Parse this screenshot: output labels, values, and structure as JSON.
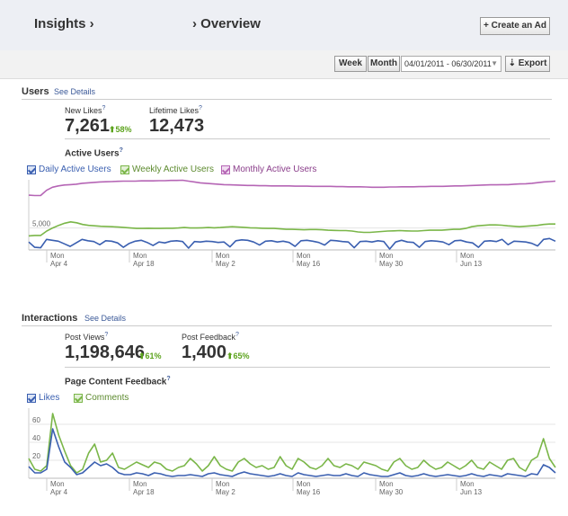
{
  "header": {
    "crumb1": "Insights ›",
    "crumb2": "› Overview",
    "create_ad": "+ Create an Ad"
  },
  "toolbar": {
    "week": "Week",
    "month": "Month",
    "date_range": "04/01/2011 - 06/30/2011",
    "export": "⇣ Export"
  },
  "users": {
    "title": "Users",
    "see_details": "See Details",
    "new_likes_label": "New Likes",
    "new_likes_value": "7,261",
    "new_likes_delta": "58%",
    "lifetime_likes_label": "Lifetime Likes",
    "lifetime_likes_value": "12,473",
    "chart_title": "Active Users",
    "legend": [
      "Daily Active Users",
      "Weekly Active Users",
      "Monthly Active Users"
    ]
  },
  "interactions": {
    "title": "Interactions",
    "see_details": "See Details",
    "post_views_label": "Post Views",
    "post_views_value": "1,198,646",
    "post_views_delta": "61%",
    "post_feedback_label": "Post Feedback",
    "post_feedback_value": "1,400",
    "post_feedback_delta": "65%",
    "chart_title": "Page Content Feedback",
    "legend": [
      "Likes",
      "Comments"
    ]
  },
  "colors": {
    "daily": "#3a5fb0",
    "weekly": "#7ab648",
    "monthly": "#b565b5",
    "link": "#3b5998",
    "up": "#5ca31d"
  },
  "chart_data": [
    {
      "type": "line",
      "title": "Active Users",
      "x_ticks": [
        [
          "Mon",
          "Apr 4"
        ],
        [
          "Mon",
          "Apr 18"
        ],
        [
          "Mon",
          "May 2"
        ],
        [
          "Mon",
          "May 16"
        ],
        [
          "Mon",
          "May 30"
        ],
        [
          "Mon",
          "Jun 13"
        ]
      ],
      "y_ticks": [
        5000
      ],
      "y_tick_labels": [
        "5,000"
      ],
      "ylim": [
        0,
        16000
      ],
      "series": [
        {
          "name": "Daily Active Users",
          "color": "#3a5fb0",
          "values": [
            1800,
            600,
            500,
            2400,
            2200,
            2000,
            1400,
            800,
            1600,
            2400,
            2100,
            1900,
            1200,
            2100,
            2000,
            1600,
            600,
            1500,
            2000,
            2200,
            1700,
            1000,
            1800,
            1600,
            2000,
            2100,
            1900,
            400,
            1900,
            1800,
            2000,
            1900,
            1700,
            1800,
            700,
            2100,
            2300,
            2200,
            1800,
            1100,
            2000,
            2100,
            1800,
            2000,
            1700,
            800,
            2100,
            2200,
            2000,
            1700,
            1100,
            2200,
            2100,
            1900,
            1800,
            500,
            1900,
            2000,
            1800,
            2100,
            1900,
            200,
            1800,
            2200,
            1800,
            1700,
            600,
            1900,
            2100,
            2000,
            1800,
            1200,
            2100,
            2200,
            1800,
            1600,
            600,
            2000,
            2100,
            1900,
            2400,
            1200,
            2000,
            1900,
            1800,
            1500,
            900,
            2400,
            2600,
            2000
          ]
        },
        {
          "name": "Weekly Active Users",
          "color": "#7ab648",
          "values": [
            3200,
            3300,
            3300,
            4300,
            5000,
            5600,
            6100,
            6400,
            6200,
            5800,
            5600,
            5500,
            5400,
            5350,
            5300,
            5200,
            5100,
            5000,
            4900,
            4900,
            4950,
            4900,
            4900,
            4950,
            4950,
            5000,
            5100,
            5000,
            5000,
            5050,
            5100,
            5050,
            5100,
            5200,
            5300,
            5200,
            5150,
            5050,
            5000,
            4950,
            4900,
            4900,
            4800,
            4700,
            4700,
            4650,
            4600,
            4650,
            4650,
            4600,
            4500,
            4450,
            4400,
            4400,
            4300,
            4100,
            4000,
            4000,
            4100,
            4200,
            4300,
            4350,
            4400,
            4350,
            4300,
            4300,
            4400,
            4500,
            4500,
            4500,
            4600,
            4700,
            4700,
            4900,
            5300,
            5500,
            5600,
            5700,
            5700,
            5650,
            5500,
            5400,
            5300,
            5400,
            5500,
            5600,
            5800,
            5900,
            5900
          ]
        },
        {
          "name": "Monthly Active Users",
          "color": "#b565b5",
          "values": [
            12500,
            12400,
            12400,
            13600,
            14300,
            14600,
            14800,
            14900,
            15000,
            15200,
            15300,
            15400,
            15500,
            15550,
            15600,
            15650,
            15700,
            15700,
            15700,
            15750,
            15750,
            15750,
            15800,
            15800,
            15850,
            15850,
            15900,
            15700,
            15500,
            15300,
            15200,
            15100,
            15000,
            14900,
            14850,
            14800,
            14750,
            14700,
            14700,
            14650,
            14650,
            14600,
            14600,
            14600,
            14600,
            14550,
            14550,
            14550,
            14500,
            14500,
            14500,
            14500,
            14450,
            14450,
            14400,
            14400,
            14400,
            14350,
            14300,
            14300,
            14300,
            14350,
            14350,
            14400,
            14400,
            14400,
            14450,
            14450,
            14500,
            14500,
            14500,
            14550,
            14600,
            14600,
            14650,
            14700,
            14750,
            14800,
            14850,
            14850,
            14900,
            14900,
            15000,
            15050,
            15100,
            15200,
            15350,
            15500,
            15600,
            15700
          ]
        }
      ]
    },
    {
      "type": "line",
      "title": "Page Content Feedback",
      "x_ticks": [
        [
          "Mon",
          "Apr 4"
        ],
        [
          "Mon",
          "Apr 18"
        ],
        [
          "Mon",
          "May 2"
        ],
        [
          "Mon",
          "May 16"
        ],
        [
          "Mon",
          "May 30"
        ],
        [
          "Mon",
          "Jun 13"
        ]
      ],
      "y_ticks": [
        20,
        40,
        60
      ],
      "ylim": [
        0,
        78
      ],
      "series": [
        {
          "name": "Likes",
          "color": "#3a5fb0",
          "values": [
            13,
            6,
            6,
            10,
            55,
            35,
            18,
            12,
            4,
            6,
            12,
            18,
            14,
            16,
            12,
            6,
            4,
            4,
            6,
            5,
            3,
            6,
            5,
            3,
            2,
            3,
            3,
            4,
            3,
            2,
            5,
            6,
            4,
            3,
            2,
            5,
            7,
            5,
            4,
            3,
            2,
            3,
            5,
            3,
            2,
            6,
            4,
            3,
            2,
            3,
            4,
            3,
            3,
            5,
            3,
            2,
            6,
            4,
            3,
            2,
            2,
            4,
            6,
            3,
            2,
            3,
            5,
            3,
            2,
            3,
            4,
            3,
            2,
            3,
            5,
            3,
            2,
            4,
            3,
            2,
            5,
            4,
            3,
            2,
            5,
            4,
            15,
            12,
            6
          ]
        },
        {
          "name": "Comments",
          "color": "#7ab648",
          "values": [
            22,
            10,
            8,
            14,
            72,
            48,
            30,
            14,
            6,
            10,
            28,
            38,
            18,
            20,
            28,
            12,
            10,
            14,
            18,
            15,
            12,
            18,
            16,
            10,
            8,
            12,
            14,
            22,
            16,
            8,
            14,
            24,
            14,
            10,
            8,
            18,
            22,
            16,
            12,
            14,
            10,
            12,
            24,
            14,
            10,
            22,
            18,
            12,
            10,
            14,
            22,
            14,
            12,
            16,
            14,
            10,
            18,
            16,
            14,
            10,
            8,
            18,
            22,
            14,
            10,
            12,
            20,
            14,
            10,
            12,
            18,
            14,
            10,
            14,
            20,
            12,
            10,
            18,
            14,
            10,
            20,
            22,
            12,
            8,
            20,
            24,
            44,
            22,
            12
          ]
        }
      ]
    }
  ]
}
